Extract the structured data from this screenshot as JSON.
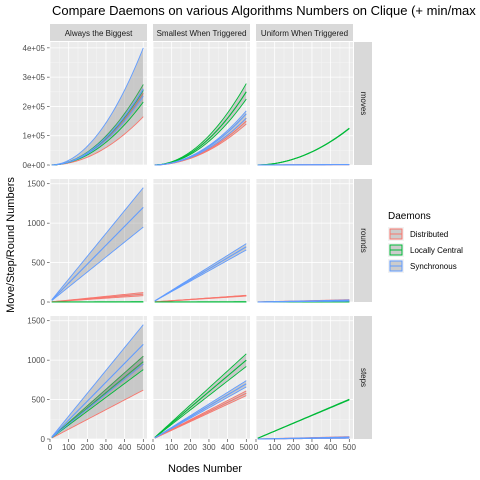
{
  "chart_data": {
    "type": "line",
    "title": "Compare Daemons on various Algorithms Numbers on Clique (+ min/max",
    "xlabel": "Nodes Number",
    "ylabel": "Move/Step/Round Numbers",
    "columns": [
      "Always the Biggest",
      "Smallest When Triggered",
      "Uniform When Triggered"
    ],
    "x_ticks": [
      "0",
      "100",
      "200",
      "300",
      "400",
      "500"
    ],
    "xlim": [
      0,
      520
    ],
    "legend_title": "Daemons",
    "legend_position": "right",
    "grid": true,
    "series_styles": [
      {
        "name": "Distributed",
        "color": "#F8766D"
      },
      {
        "name": "Locally Central",
        "color": "#00BA38"
      },
      {
        "name": "Synchronous",
        "color": "#619CFF"
      }
    ],
    "rows": [
      {
        "label": "moves",
        "ylim": [
          0,
          420000
        ],
        "y_ticks": [
          0,
          100000,
          200000,
          300000,
          400000
        ],
        "y_tick_labels": [
          "0e+00",
          "1e+05",
          "2e+05",
          "3e+05",
          "4e+05"
        ],
        "panels": [
          {
            "series": [
              {
                "name": "Distributed",
                "mean": 245000,
                "min": 165000,
                "max": 260000,
                "p": 2
              },
              {
                "name": "Locally Central",
                "mean": 255000,
                "min": 215000,
                "max": 275000,
                "p": 2
              },
              {
                "name": "Synchronous",
                "mean": 260000,
                "min": 235000,
                "max": 400000,
                "p": 2
              }
            ]
          },
          {
            "series": [
              {
                "name": "Distributed",
                "mean": 150000,
                "min": 140000,
                "max": 160000,
                "p": 2
              },
              {
                "name": "Locally Central",
                "mean": 250000,
                "min": 225000,
                "max": 278000,
                "p": 2
              },
              {
                "name": "Synchronous",
                "mean": 175000,
                "min": 160000,
                "max": 185000,
                "p": 2
              }
            ]
          },
          {
            "series": [
              {
                "name": "Distributed",
                "mean": 1500,
                "min": 1200,
                "max": 1800,
                "p": 1
              },
              {
                "name": "Locally Central",
                "mean": 125000,
                "min": 124000,
                "max": 126000,
                "p": 2
              },
              {
                "name": "Synchronous",
                "mean": 1500,
                "min": 1200,
                "max": 1800,
                "p": 1
              }
            ]
          }
        ]
      },
      {
        "label": "rounds",
        "ylim": [
          0,
          1560
        ],
        "y_ticks": [
          0,
          500,
          1000,
          1500
        ],
        "y_tick_labels": [
          "0",
          "500",
          "1000",
          "1500"
        ],
        "panels": [
          {
            "series": [
              {
                "name": "Distributed",
                "mean": 100,
                "min": 80,
                "max": 120,
                "p": 1
              },
              {
                "name": "Locally Central",
                "mean": 2,
                "min": 1,
                "max": 3,
                "p": 1
              },
              {
                "name": "Synchronous",
                "mean": 1200,
                "min": 950,
                "max": 1450,
                "p": 1
              }
            ]
          },
          {
            "series": [
              {
                "name": "Distributed",
                "mean": 80,
                "min": 75,
                "max": 85,
                "p": 1
              },
              {
                "name": "Locally Central",
                "mean": 2,
                "min": 1,
                "max": 3,
                "p": 1
              },
              {
                "name": "Synchronous",
                "mean": 700,
                "min": 660,
                "max": 740,
                "p": 1
              }
            ]
          },
          {
            "series": [
              {
                "name": "Distributed",
                "mean": 20,
                "min": 10,
                "max": 30,
                "p": 1
              },
              {
                "name": "Locally Central",
                "mean": 2,
                "min": 1,
                "max": 3,
                "p": 1
              },
              {
                "name": "Synchronous",
                "mean": 18,
                "min": 10,
                "max": 26,
                "p": 1
              }
            ]
          }
        ]
      },
      {
        "label": "steps",
        "ylim": [
          0,
          1560
        ],
        "y_ticks": [
          0,
          500,
          1000,
          1500
        ],
        "y_tick_labels": [
          "0",
          "500",
          "1000",
          "1500"
        ],
        "panels": [
          {
            "series": [
              {
                "name": "Distributed",
                "mean": 950,
                "min": 620,
                "max": 1050,
                "p": 1
              },
              {
                "name": "Locally Central",
                "mean": 980,
                "min": 880,
                "max": 1050,
                "p": 1
              },
              {
                "name": "Synchronous",
                "mean": 1200,
                "min": 950,
                "max": 1450,
                "p": 1
              }
            ]
          },
          {
            "series": [
              {
                "name": "Distributed",
                "mean": 580,
                "min": 550,
                "max": 610,
                "p": 1
              },
              {
                "name": "Locally Central",
                "mean": 1000,
                "min": 920,
                "max": 1080,
                "p": 1
              },
              {
                "name": "Synchronous",
                "mean": 700,
                "min": 660,
                "max": 740,
                "p": 1
              }
            ]
          },
          {
            "series": [
              {
                "name": "Distributed",
                "mean": 20,
                "min": 10,
                "max": 30,
                "p": 1
              },
              {
                "name": "Locally Central",
                "mean": 500,
                "min": 495,
                "max": 505,
                "p": 1
              },
              {
                "name": "Synchronous",
                "mean": 18,
                "min": 10,
                "max": 26,
                "p": 1
              }
            ]
          }
        ]
      }
    ]
  }
}
